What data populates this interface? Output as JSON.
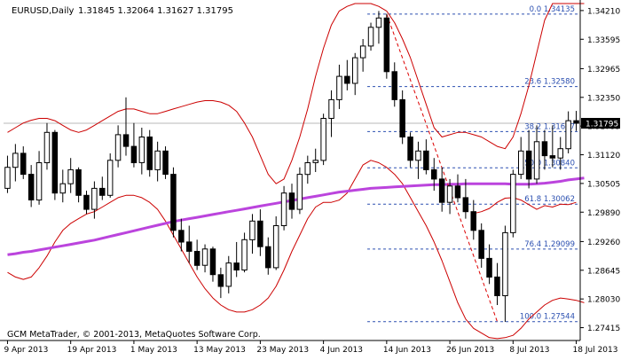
{
  "header": {
    "symbol": "EURUSD,Daily",
    "ohlc": "1.31845 1.32064 1.31627 1.31795"
  },
  "footer": {
    "copyright": "GCM MetaTrader, © 2001-2013, MetaQuotes Software Corp."
  },
  "chart_data": {
    "type": "candlestick",
    "symbol": "EURUSD",
    "timeframe": "Daily",
    "ylim": [
      1.2714,
      1.3436
    ],
    "y_ticks": [
      1.3421,
      1.33595,
      1.32965,
      1.3235,
      1.31735,
      1.3112,
      1.30505,
      1.2989,
      1.2926,
      1.28645,
      1.2803,
      1.27415
    ],
    "y_tick_labels": [
      "1.34210",
      "1.33595",
      "1.32965",
      "1.32350",
      "1.31735",
      "1.31120",
      "1.30505",
      "1.29890",
      "1.29260",
      "1.28645",
      "1.28030",
      "1.27415"
    ],
    "current_price": 1.31795,
    "current_price_label": "1.31795",
    "x_tick_labels": [
      "9 Apr 2013",
      "19 Apr 2013",
      "1 May 2013",
      "13 May 2013",
      "23 May 2013",
      "4 Jun 2013",
      "14 Jun 2013",
      "26 Jun 2013",
      "8 Jul 2013",
      "18 Jul 2013"
    ],
    "x_tick_index": [
      0,
      8,
      16,
      24,
      32,
      40,
      48,
      56,
      64,
      72
    ],
    "candles": [
      [
        1.304,
        1.311,
        1.303,
        1.3085
      ],
      [
        1.3085,
        1.3135,
        1.3055,
        1.3115
      ],
      [
        1.3115,
        1.313,
        1.306,
        1.307
      ],
      [
        1.307,
        1.309,
        1.3,
        1.3015
      ],
      [
        1.3015,
        1.312,
        1.3005,
        1.3095
      ],
      [
        1.3095,
        1.318,
        1.308,
        1.316
      ],
      [
        1.316,
        1.3165,
        1.3015,
        1.303
      ],
      [
        1.303,
        1.308,
        1.301,
        1.305
      ],
      [
        1.305,
        1.3105,
        1.303,
        1.308
      ],
      [
        1.308,
        1.3085,
        1.301,
        1.3025
      ],
      [
        1.3025,
        1.3035,
        1.2985,
        1.2995
      ],
      [
        1.2995,
        1.3055,
        1.2975,
        1.304
      ],
      [
        1.304,
        1.3065,
        1.3015,
        1.3025
      ],
      [
        1.3025,
        1.3115,
        1.302,
        1.31
      ],
      [
        1.31,
        1.3175,
        1.3085,
        1.3155
      ],
      [
        1.3155,
        1.3235,
        1.311,
        1.313
      ],
      [
        1.313,
        1.318,
        1.3085,
        1.3095
      ],
      [
        1.3095,
        1.317,
        1.307,
        1.315
      ],
      [
        1.315,
        1.3165,
        1.3065,
        1.308
      ],
      [
        1.308,
        1.314,
        1.3055,
        1.312
      ],
      [
        1.312,
        1.313,
        1.306,
        1.307
      ],
      [
        1.307,
        1.3085,
        1.2935,
        1.295
      ],
      [
        1.295,
        1.2975,
        1.2905,
        1.2925
      ],
      [
        1.2925,
        1.296,
        1.288,
        1.2905
      ],
      [
        1.2905,
        1.293,
        1.2865,
        1.2875
      ],
      [
        1.2875,
        1.292,
        1.286,
        1.291
      ],
      [
        1.291,
        1.2915,
        1.284,
        1.2855
      ],
      [
        1.2855,
        1.287,
        1.2805,
        1.283
      ],
      [
        1.283,
        1.2895,
        1.2815,
        1.288
      ],
      [
        1.288,
        1.2925,
        1.285,
        1.2865
      ],
      [
        1.2865,
        1.2945,
        1.286,
        1.293
      ],
      [
        1.293,
        1.2985,
        1.29,
        1.297
      ],
      [
        1.297,
        1.2995,
        1.2895,
        1.2915
      ],
      [
        1.2915,
        1.2935,
        1.2855,
        1.287
      ],
      [
        1.287,
        1.298,
        1.2865,
        1.296
      ],
      [
        1.296,
        1.3045,
        1.295,
        1.303
      ],
      [
        1.303,
        1.305,
        1.2975,
        1.2995
      ],
      [
        1.2995,
        1.3085,
        1.2985,
        1.307
      ],
      [
        1.307,
        1.311,
        1.305,
        1.3095
      ],
      [
        1.3095,
        1.3125,
        1.3075,
        1.31
      ],
      [
        1.31,
        1.32,
        1.309,
        1.319
      ],
      [
        1.319,
        1.325,
        1.315,
        1.323
      ],
      [
        1.323,
        1.3305,
        1.321,
        1.328
      ],
      [
        1.328,
        1.3315,
        1.325,
        1.3265
      ],
      [
        1.3265,
        1.333,
        1.324,
        1.332
      ],
      [
        1.332,
        1.336,
        1.329,
        1.3345
      ],
      [
        1.3345,
        1.3395,
        1.3335,
        1.3385
      ],
      [
        1.3385,
        1.342,
        1.335,
        1.3405
      ],
      [
        1.3405,
        1.3414,
        1.3275,
        1.329
      ],
      [
        1.329,
        1.331,
        1.3215,
        1.323
      ],
      [
        1.323,
        1.325,
        1.3135,
        1.315
      ],
      [
        1.315,
        1.316,
        1.3085,
        1.31
      ],
      [
        1.31,
        1.314,
        1.306,
        1.312
      ],
      [
        1.312,
        1.3145,
        1.307,
        1.308
      ],
      [
        1.308,
        1.3105,
        1.3035,
        1.306
      ],
      [
        1.306,
        1.3085,
        1.299,
        1.301
      ],
      [
        1.301,
        1.306,
        1.2985,
        1.3045
      ],
      [
        1.3045,
        1.307,
        1.301,
        1.302
      ],
      [
        1.302,
        1.306,
        1.2975,
        1.299
      ],
      [
        1.299,
        1.3015,
        1.293,
        1.295
      ],
      [
        1.295,
        1.2965,
        1.287,
        1.289
      ],
      [
        1.289,
        1.292,
        1.2835,
        1.285
      ],
      [
        1.285,
        1.288,
        1.279,
        1.281
      ],
      [
        1.281,
        1.296,
        1.2754,
        1.2945
      ],
      [
        1.2945,
        1.308,
        1.2935,
        1.307
      ],
      [
        1.307,
        1.315,
        1.306,
        1.312
      ],
      [
        1.312,
        1.3165,
        1.304,
        1.306
      ],
      [
        1.306,
        1.3175,
        1.305,
        1.314
      ],
      [
        1.314,
        1.3165,
        1.308,
        1.311
      ],
      [
        1.311,
        1.3175,
        1.3085,
        1.3105
      ],
      [
        1.3105,
        1.315,
        1.308,
        1.3125
      ],
      [
        1.3125,
        1.3205,
        1.3115,
        1.3185
      ],
      [
        1.3185,
        1.3206,
        1.3163,
        1.31795
      ]
    ],
    "ma_line": {
      "color": "#bb44dd",
      "values": [
        1.2898,
        1.29,
        1.2903,
        1.2905,
        1.2908,
        1.2911,
        1.2914,
        1.2917,
        1.292,
        1.2923,
        1.2926,
        1.2929,
        1.2933,
        1.2937,
        1.2941,
        1.2945,
        1.2949,
        1.2953,
        1.2957,
        1.2961,
        1.2965,
        1.2969,
        1.2972,
        1.2975,
        1.2978,
        1.2981,
        1.2984,
        1.2987,
        1.299,
        1.2993,
        1.2996,
        1.2999,
        1.3002,
        1.3005,
        1.3008,
        1.3011,
        1.3014,
        1.3017,
        1.302,
        1.3023,
        1.3026,
        1.3029,
        1.3032,
        1.3034,
        1.3036,
        1.3038,
        1.304,
        1.3041,
        1.3042,
        1.3043,
        1.3044,
        1.3045,
        1.3046,
        1.3047,
        1.3048,
        1.3048,
        1.3049,
        1.3049,
        1.305,
        1.305,
        1.305,
        1.305,
        1.305,
        1.305,
        1.3049,
        1.3049,
        1.3049,
        1.305,
        1.3051,
        1.3053,
        1.3055,
        1.3058,
        1.306,
        1.3062
      ]
    },
    "bands": {
      "color": "#cc0000",
      "upper": [
        1.316,
        1.317,
        1.318,
        1.3186,
        1.319,
        1.319,
        1.3185,
        1.3175,
        1.3165,
        1.316,
        1.3165,
        1.3175,
        1.3185,
        1.3195,
        1.3205,
        1.321,
        1.321,
        1.3205,
        1.32,
        1.32,
        1.3205,
        1.321,
        1.3215,
        1.322,
        1.3225,
        1.3228,
        1.3228,
        1.3225,
        1.3218,
        1.3205,
        1.318,
        1.315,
        1.311,
        1.307,
        1.305,
        1.306,
        1.31,
        1.315,
        1.321,
        1.328,
        1.334,
        1.339,
        1.342,
        1.343,
        1.3436,
        1.3436,
        1.3436,
        1.343,
        1.342,
        1.3395,
        1.336,
        1.332,
        1.327,
        1.322,
        1.317,
        1.315,
        1.3155,
        1.316,
        1.316,
        1.3155,
        1.315,
        1.314,
        1.313,
        1.3125,
        1.315,
        1.32,
        1.326,
        1.333,
        1.34,
        1.3436,
        1.3436,
        1.3436,
        1.3436,
        1.3436
      ],
      "lower": [
        1.286,
        1.285,
        1.2845,
        1.285,
        1.287,
        1.2895,
        1.2925,
        1.295,
        1.2965,
        1.2975,
        1.2985,
        1.299,
        1.3,
        1.301,
        1.302,
        1.3025,
        1.3025,
        1.302,
        1.301,
        1.2995,
        1.297,
        1.294,
        1.291,
        1.288,
        1.285,
        1.2825,
        1.2805,
        1.279,
        1.278,
        1.2775,
        1.2775,
        1.278,
        1.279,
        1.2805,
        1.283,
        1.2865,
        1.2905,
        1.294,
        1.2975,
        1.3,
        1.301,
        1.301,
        1.3015,
        1.303,
        1.306,
        1.309,
        1.31,
        1.3095,
        1.3085,
        1.307,
        1.305,
        1.302,
        1.299,
        1.296,
        1.2925,
        1.2885,
        1.284,
        1.2795,
        1.276,
        1.274,
        1.273,
        1.272,
        1.2718,
        1.272,
        1.2725,
        1.274,
        1.276,
        1.2775,
        1.279,
        1.28,
        1.2805,
        1.2803,
        1.28,
        1.2795
      ]
    },
    "band_segment": {
      "color": "#cc0000",
      "values": [
        1.2986,
        1.299,
        1.2997,
        1.301,
        1.3019,
        1.302,
        1.3015,
        1.3005,
        1.2995,
        1.3003,
        1.3,
        1.3006,
        1.3005,
        1.301
      ]
    },
    "zigzag": {
      "color": "#dd0000",
      "from": {
        "index": 48,
        "price": 1.34135
      },
      "to": {
        "index": 62,
        "price": 1.27544
      }
    },
    "fibonacci": {
      "color": "#2b4fb0",
      "levels": [
        {
          "price": 1.34135,
          "label": "0.0 1.34135"
        },
        {
          "price": 1.3258,
          "label": "23.6 1.32580"
        },
        {
          "price": 1.31617,
          "label": "38.2 1.31617"
        },
        {
          "price": 1.3084,
          "label": "50.0 1.30840"
        },
        {
          "price": 1.30062,
          "label": "61.8 1.30062"
        },
        {
          "price": 1.29099,
          "label": "76.4 1.29099"
        },
        {
          "price": 1.27544,
          "label": "100.0 1.27544"
        }
      ]
    }
  }
}
